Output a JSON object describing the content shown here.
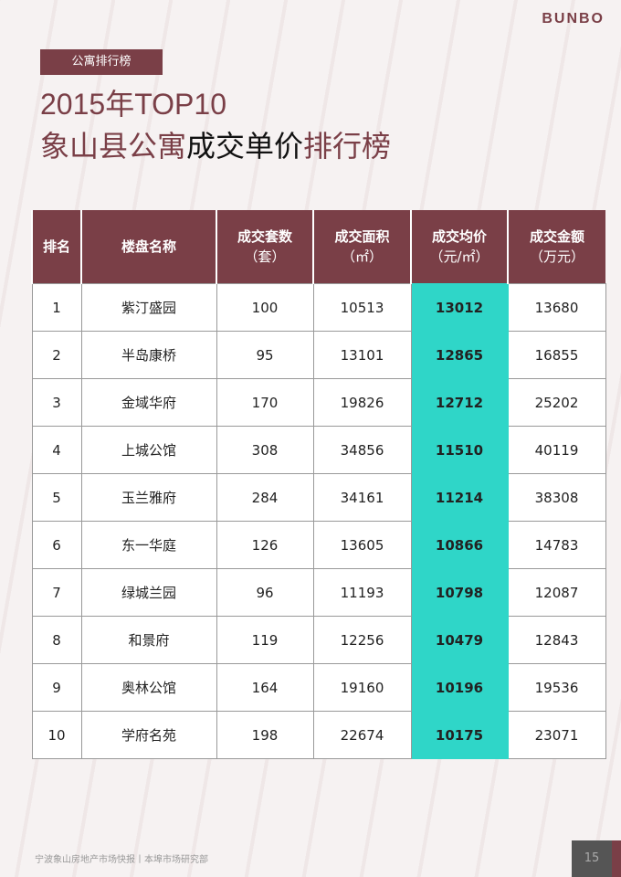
{
  "logo": "BUNBO",
  "tag": "公寓排行榜",
  "title_line1": "2015年TOP10",
  "title_line2a": "象山县公寓",
  "title_line2b": "成交单价",
  "title_line2c": "排行榜",
  "colors": {
    "accent": "#7a3f47",
    "highlight": "#2fd6c8"
  },
  "table": {
    "headers": [
      [
        "排名",
        ""
      ],
      [
        "楼盘名称",
        ""
      ],
      [
        "成交套数",
        "（套）"
      ],
      [
        "成交面积",
        "（㎡）"
      ],
      [
        "成交均价",
        "（元/㎡）"
      ],
      [
        "成交金额",
        "（万元）"
      ]
    ],
    "rows": [
      [
        "1",
        "紫汀盛园",
        "100",
        "10513",
        "13012",
        "13680"
      ],
      [
        "2",
        "半岛康桥",
        "95",
        "13101",
        "12865",
        "16855"
      ],
      [
        "3",
        "金域华府",
        "170",
        "19826",
        "12712",
        "25202"
      ],
      [
        "4",
        "上城公馆",
        "308",
        "34856",
        "11510",
        "40119"
      ],
      [
        "5",
        "玉兰雅府",
        "284",
        "34161",
        "11214",
        "38308"
      ],
      [
        "6",
        "东一华庭",
        "126",
        "13605",
        "10866",
        "14783"
      ],
      [
        "7",
        "绿城兰园",
        "96",
        "11193",
        "10798",
        "12087"
      ],
      [
        "8",
        "和景府",
        "119",
        "12256",
        "10479",
        "12843"
      ],
      [
        "9",
        "奥林公馆",
        "164",
        "19160",
        "10196",
        "19536"
      ],
      [
        "10",
        "学府名苑",
        "198",
        "22674",
        "10175",
        "23071"
      ]
    ]
  },
  "footer": "宁波象山房地产市场快报丨本埠市场研究部",
  "page_number": "15"
}
